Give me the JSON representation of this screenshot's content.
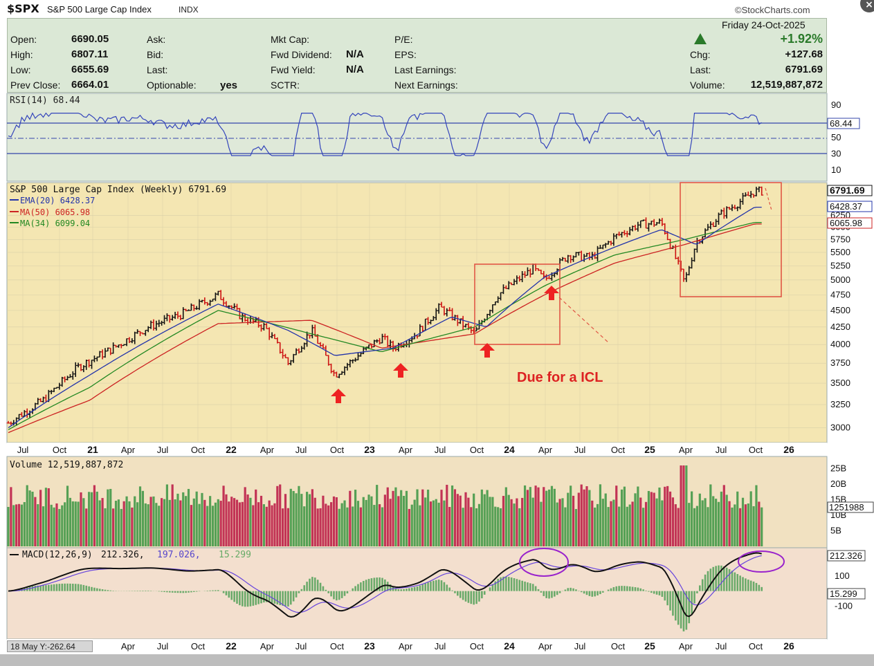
{
  "header": {
    "symbol": "$SPX",
    "name": "S&P 500 Large Cap Index",
    "type": "INDX",
    "brand": "©StockCharts.com",
    "date": "Friday  24-Oct-2025"
  },
  "quote": {
    "open_label": "Open:",
    "open": "6690.05",
    "high_label": "High:",
    "high": "6807.11",
    "low_label": "Low:",
    "low": "6655.69",
    "prev_label": "Prev Close:",
    "prev": "6664.01",
    "ask_label": "Ask:",
    "bid_label": "Bid:",
    "last_label2": "Last:",
    "optionable_label": "Optionable:",
    "optionable": "yes",
    "mktcap_label": "Mkt Cap:",
    "fwddiv_label": "Fwd Dividend:",
    "fwddiv": "N/A",
    "fwdyield_label": "Fwd Yield:",
    "fwdyield": "N/A",
    "sctr_label": "SCTR:",
    "pe_label": "P/E:",
    "eps_label": "EPS:",
    "lastearn_label": "Last Earnings:",
    "nextearn_label": "Next Earnings:",
    "chg_pct": "+1.92%",
    "chg_label": "Chg:",
    "chg": "+127.68",
    "last_label": "Last:",
    "last": "6791.69",
    "volume_label": "Volume:",
    "volume": "12,519,887,872"
  },
  "rsi": {
    "legend": "RSI(14) 68.44",
    "ticks": [
      "90",
      "70",
      "50",
      "30",
      "10"
    ],
    "value_box": "68.44"
  },
  "price": {
    "legend_title": "S&P 500 Large Cap Index (Weekly) 6791.69",
    "legend_ema": "EMA(20) 6428.37",
    "legend_ma50": "MA(50) 6065.98",
    "legend_ma34": "MA(34) 6099.04",
    "ticks": [
      "6250",
      "6000",
      "5750",
      "5500",
      "5250",
      "5000",
      "4750",
      "4500",
      "4250",
      "4000",
      "3750",
      "3500",
      "3250",
      "3000"
    ],
    "boxes": [
      "6791.69",
      "6428.37",
      "6065.98"
    ],
    "annotation": "Due for a ICL"
  },
  "xaxis": {
    "labels": [
      "Jul",
      "Oct",
      "21",
      "Apr",
      "Jul",
      "Oct",
      "22",
      "Apr",
      "Jul",
      "Oct",
      "23",
      "Apr",
      "Jul",
      "Oct",
      "24",
      "Apr",
      "Jul",
      "Oct",
      "25",
      "Apr",
      "Jul",
      "Oct",
      "26"
    ]
  },
  "volume": {
    "legend": "Volume 12,519,887,872",
    "ticks": [
      "25B",
      "20B",
      "15B",
      "10B",
      "5B"
    ],
    "value_box": "1251988"
  },
  "macd": {
    "legend_name": "MACD(12,26,9)",
    "legend_macd": "212.326,",
    "legend_signal": "197.026,",
    "legend_hist": "15.299",
    "ticks": [
      "100",
      "-100"
    ],
    "boxes": [
      "212.326",
      "15.299"
    ]
  },
  "footer": {
    "corner": "18 May Y:-262.64"
  },
  "colors": {
    "price_bg": "#f3e4ae",
    "up": "#111111",
    "down": "#cc1111",
    "ema": "#2233aa",
    "ma50": "#cc2222",
    "ma34": "#228822"
  },
  "chart_data": {
    "type": "line",
    "title": "S&P 500 Large Cap Index (Weekly)",
    "x_range": [
      "2020-06",
      "2025-10"
    ],
    "y_range": [
      3000,
      6900
    ],
    "series": [
      {
        "name": "S&P 500 Large Cap Index (Weekly)",
        "points": [
          [
            "2020-06",
            3050
          ],
          [
            "2020-09",
            3300
          ],
          [
            "2020-12",
            3700
          ],
          [
            "2021-03",
            3950
          ],
          [
            "2021-06",
            4250
          ],
          [
            "2021-09",
            4450
          ],
          [
            "2021-12",
            4750
          ],
          [
            "2022-02",
            4400
          ],
          [
            "2022-04",
            4250
          ],
          [
            "2022-06",
            3750
          ],
          [
            "2022-08",
            4200
          ],
          [
            "2022-10",
            3600
          ],
          [
            "2022-12",
            3850
          ],
          [
            "2023-02",
            4100
          ],
          [
            "2023-03",
            3950
          ],
          [
            "2023-05",
            4150
          ],
          [
            "2023-07",
            4550
          ],
          [
            "2023-10",
            4150
          ],
          [
            "2023-12",
            4750
          ],
          [
            "2024-03",
            5200
          ],
          [
            "2024-04",
            5000
          ],
          [
            "2024-06",
            5450
          ],
          [
            "2024-08",
            5400
          ],
          [
            "2024-10",
            5800
          ],
          [
            "2024-12",
            6050
          ],
          [
            "2025-02",
            6100
          ],
          [
            "2025-04",
            4950
          ],
          [
            "2025-05",
            5700
          ],
          [
            "2025-07",
            6250
          ],
          [
            "2025-09",
            6600
          ],
          [
            "2025-10",
            6791.69
          ]
        ]
      },
      {
        "name": "EMA(20)",
        "points": [
          [
            "2020-06",
            3000
          ],
          [
            "2021-01",
            3600
          ],
          [
            "2021-12",
            4600
          ],
          [
            "2022-06",
            4200
          ],
          [
            "2022-10",
            3850
          ],
          [
            "2023-03",
            3950
          ],
          [
            "2023-08",
            4400
          ],
          [
            "2023-11",
            4250
          ],
          [
            "2024-04",
            5050
          ],
          [
            "2024-10",
            5600
          ],
          [
            "2025-02",
            5950
          ],
          [
            "2025-05",
            5650
          ],
          [
            "2025-10",
            6428.37
          ]
        ]
      },
      {
        "name": "MA(50)",
        "points": [
          [
            "2020-06",
            2950
          ],
          [
            "2021-01",
            3300
          ],
          [
            "2021-12",
            4300
          ],
          [
            "2022-08",
            4350
          ],
          [
            "2023-02",
            3950
          ],
          [
            "2023-10",
            4150
          ],
          [
            "2024-04",
            4750
          ],
          [
            "2024-10",
            5300
          ],
          [
            "2025-04",
            5650
          ],
          [
            "2025-10",
            6065.98
          ]
        ]
      },
      {
        "name": "MA(34)",
        "points": [
          [
            "2020-06",
            2980
          ],
          [
            "2021-01",
            3450
          ],
          [
            "2021-12",
            4500
          ],
          [
            "2022-08",
            4150
          ],
          [
            "2023-02",
            3900
          ],
          [
            "2023-10",
            4250
          ],
          [
            "2024-04",
            4900
          ],
          [
            "2024-10",
            5450
          ],
          [
            "2025-04",
            5750
          ],
          [
            "2025-10",
            6099.04
          ]
        ]
      }
    ],
    "rsi_last": 68.44,
    "volume_last": 12519887872,
    "macd_last": {
      "macd": 212.326,
      "signal": 197.026,
      "histogram": 15.299
    }
  }
}
